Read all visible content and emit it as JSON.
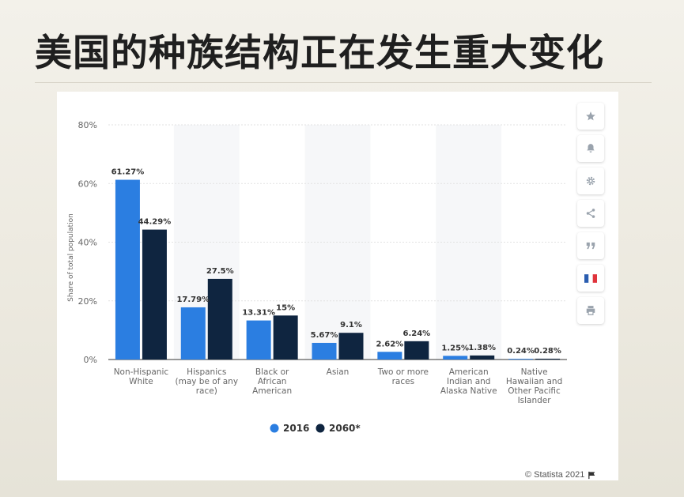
{
  "slide": {
    "title": "美国的种族结构正在发生重大变化"
  },
  "toolbar": [
    {
      "name": "star-icon"
    },
    {
      "name": "bell-icon"
    },
    {
      "name": "gear-icon"
    },
    {
      "name": "share-icon"
    },
    {
      "name": "quote-icon"
    },
    {
      "name": "french-flag-icon"
    },
    {
      "name": "print-icon"
    }
  ],
  "credit": {
    "text": "© Statista 2021"
  },
  "colors": {
    "series_2016": "#2b7ee1",
    "series_2060": "#0f2540",
    "grid": "#e2e2e2",
    "band": "#f6f7f9"
  },
  "chart_data": {
    "type": "bar",
    "title": "",
    "xlabel": "",
    "ylabel": "Share of total population",
    "ylim": [
      0,
      80
    ],
    "yticks": [
      {
        "value": 0,
        "label": "0%"
      },
      {
        "value": 20,
        "label": "20%"
      },
      {
        "value": 40,
        "label": "40%"
      },
      {
        "value": 60,
        "label": "60%"
      },
      {
        "value": 80,
        "label": "80%"
      }
    ],
    "grid": true,
    "legend": "bottom-center",
    "categories": [
      [
        "Non-Hispanic",
        "White"
      ],
      [
        "Hispanics",
        "(may be of any",
        "race)"
      ],
      [
        "Black or",
        "African",
        "American"
      ],
      [
        "Asian"
      ],
      [
        "Two or more",
        "races"
      ],
      [
        "American",
        "Indian and",
        "Alaska Native"
      ],
      [
        "Native",
        "Hawaiian and",
        "Other Pacific",
        "Islander"
      ]
    ],
    "series": [
      {
        "name": "2016",
        "color": "#2b7ee1",
        "values": [
          61.27,
          17.79,
          13.31,
          5.67,
          2.62,
          1.25,
          0.24
        ],
        "labels": [
          "61.27%",
          "17.79%",
          "13.31%",
          "5.67%",
          "2.62%",
          "1.25%",
          "0.24%"
        ]
      },
      {
        "name": "2060*",
        "color": "#0f2540",
        "values": [
          44.29,
          27.5,
          15,
          9.1,
          6.24,
          1.38,
          0.28
        ],
        "labels": [
          "44.29%",
          "27.5%",
          "15%",
          "9.1%",
          "6.24%",
          "1.38%",
          "0.28%"
        ]
      }
    ]
  }
}
